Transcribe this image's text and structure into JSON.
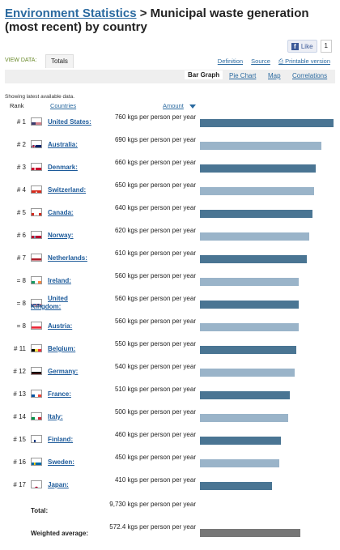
{
  "header": {
    "title_link": "Environment Statistics",
    "title_rest": " > Municipal waste generation (most recent) by country"
  },
  "social": {
    "like_label": "Like",
    "like_count": "1",
    "icon": "facebook-f-icon"
  },
  "view": {
    "label": "VIEW DATA:",
    "tab": "Totals",
    "links": [
      "Definition",
      "Source",
      "Printable version"
    ]
  },
  "tabs": [
    "Bar Graph",
    "Pie Chart",
    "Map",
    "Correlations"
  ],
  "note": "Showing latest available data.",
  "columns": {
    "rank": "Rank",
    "countries": "Countries",
    "amount": "Amount"
  },
  "colors": {
    "dark_bar": "#4a7593",
    "light_bar": "#9ab4c9",
    "avg_bar": "#777777",
    "link": "#2b6aa0"
  },
  "chart_data": {
    "type": "bar",
    "unit": "kgs per person per year",
    "categories": [
      "United States",
      "Australia",
      "Denmark",
      "Switzerland",
      "Canada",
      "Norway",
      "Netherlands",
      "Ireland",
      "United Kingdom",
      "Austria",
      "Belgium",
      "Germany",
      "France",
      "Italy",
      "Finland",
      "Sweden",
      "Japan"
    ],
    "values": [
      760,
      690,
      660,
      650,
      640,
      620,
      610,
      560,
      560,
      560,
      550,
      540,
      510,
      500,
      460,
      450,
      410
    ],
    "xlim": [
      0,
      760
    ]
  },
  "rows": [
    {
      "rank": "# 1",
      "country": "United States",
      "amount": "760 kgs per person per year",
      "flag": "us"
    },
    {
      "rank": "# 2",
      "country": "Australia",
      "amount": "690 kgs per person per year",
      "flag": "au"
    },
    {
      "rank": "# 3",
      "country": "Denmark",
      "amount": "660 kgs per person per year",
      "flag": "dk"
    },
    {
      "rank": "# 4",
      "country": "Switzerland",
      "amount": "650 kgs per person per year",
      "flag": "ch"
    },
    {
      "rank": "# 5",
      "country": "Canada",
      "amount": "640 kgs per person per year",
      "flag": "ca"
    },
    {
      "rank": "# 6",
      "country": "Norway",
      "amount": "620 kgs per person per year",
      "flag": "no"
    },
    {
      "rank": "# 7",
      "country": "Netherlands",
      "amount": "610 kgs per person per year",
      "flag": "nl"
    },
    {
      "rank": "= 8",
      "country": "Ireland",
      "amount": "560 kgs per person per year",
      "flag": "ie"
    },
    {
      "rank": "= 8",
      "country": "United Kingdom",
      "amount": "560 kgs per person per year",
      "flag": "uk"
    },
    {
      "rank": "= 8",
      "country": "Austria",
      "amount": "560 kgs per person per year",
      "flag": "at"
    },
    {
      "rank": "# 11",
      "country": "Belgium",
      "amount": "550 kgs per person per year",
      "flag": "be"
    },
    {
      "rank": "# 12",
      "country": "Germany",
      "amount": "540 kgs per person per year",
      "flag": "de"
    },
    {
      "rank": "# 13",
      "country": "France",
      "amount": "510 kgs per person per year",
      "flag": "fr"
    },
    {
      "rank": "# 14",
      "country": "Italy",
      "amount": "500 kgs per person per year",
      "flag": "it"
    },
    {
      "rank": "# 15",
      "country": "Finland",
      "amount": "460 kgs per person per year",
      "flag": "fi"
    },
    {
      "rank": "# 16",
      "country": "Sweden",
      "amount": "450 kgs per person per year",
      "flag": "se"
    },
    {
      "rank": "# 17",
      "country": "Japan",
      "amount": "410 kgs per person per year",
      "flag": "jp"
    }
  ],
  "totals": {
    "total_label": "Total:",
    "total_value": "9,730 kgs per person per year",
    "avg_label": "Weighted average:",
    "avg_value": "572.4 kgs per person per year",
    "avg_number": 572.4
  }
}
